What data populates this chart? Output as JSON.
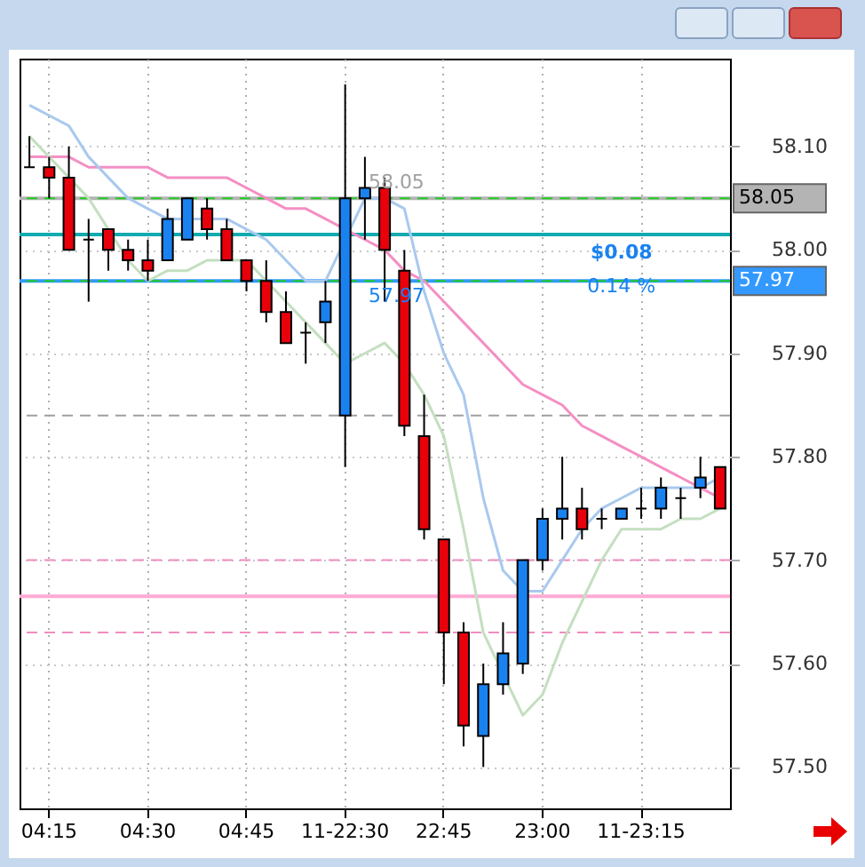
{
  "chart_data": {
    "type": "candlestick",
    "categories": [
      null,
      "04:15",
      null,
      null,
      null,
      null,
      "04:30",
      null,
      null,
      null,
      null,
      "04:45",
      null,
      null,
      null,
      null,
      "11-22:30",
      null,
      null,
      null,
      null,
      "22:45",
      null,
      null,
      null,
      null,
      "23:00",
      null,
      null,
      null,
      null,
      "11-23:15",
      null,
      null,
      null,
      null
    ],
    "ohlc": [
      [
        58.08,
        58.11,
        58.08,
        58.08
      ],
      [
        58.08,
        58.09,
        58.05,
        58.07
      ],
      [
        58.07,
        58.1,
        58.0,
        58.0
      ],
      [
        58.01,
        58.03,
        57.95,
        58.01
      ],
      [
        58.02,
        58.02,
        57.98,
        58.0
      ],
      [
        58.0,
        58.01,
        57.98,
        57.99
      ],
      [
        57.99,
        58.01,
        57.97,
        57.98
      ],
      [
        57.99,
        58.04,
        57.99,
        58.03
      ],
      [
        58.01,
        58.05,
        58.01,
        58.05
      ],
      [
        58.04,
        58.05,
        58.01,
        58.02
      ],
      [
        58.02,
        58.03,
        57.99,
        57.99
      ],
      [
        57.99,
        57.99,
        57.96,
        57.97
      ],
      [
        57.97,
        57.99,
        57.93,
        57.94
      ],
      [
        57.94,
        57.96,
        57.91,
        57.91
      ],
      [
        57.92,
        57.93,
        57.89,
        57.92
      ],
      [
        57.93,
        57.97,
        57.91,
        57.95
      ],
      [
        57.84,
        58.16,
        57.79,
        58.05
      ],
      [
        58.05,
        58.09,
        58.01,
        58.06
      ],
      [
        58.06,
        58.07,
        57.95,
        58.0
      ],
      [
        57.98,
        58.0,
        57.82,
        57.83
      ],
      [
        57.82,
        57.86,
        57.72,
        57.73
      ],
      [
        57.72,
        57.72,
        57.58,
        57.63
      ],
      [
        57.63,
        57.64,
        57.52,
        57.54
      ],
      [
        57.53,
        57.6,
        57.5,
        57.58
      ],
      [
        57.58,
        57.64,
        57.57,
        57.61
      ],
      [
        57.6,
        57.7,
        57.59,
        57.7
      ],
      [
        57.7,
        57.75,
        57.69,
        57.74
      ],
      [
        57.74,
        57.8,
        57.72,
        57.75
      ],
      [
        57.75,
        57.77,
        57.72,
        57.73
      ],
      [
        57.74,
        57.75,
        57.73,
        57.74
      ],
      [
        57.74,
        57.75,
        57.74,
        57.75
      ],
      [
        57.75,
        57.77,
        57.74,
        57.75
      ],
      [
        57.75,
        57.78,
        57.74,
        57.77
      ],
      [
        57.76,
        57.77,
        57.74,
        57.76
      ],
      [
        57.77,
        57.8,
        57.76,
        57.78
      ],
      [
        57.79,
        57.79,
        57.75,
        57.75
      ]
    ],
    "colors": [
      "#000000",
      "#e8000b",
      "#e8000b",
      "#000000",
      "#e8000b",
      "#e8000b",
      "#e8000b",
      "#1a82f0",
      "#1a82f0",
      "#e8000b",
      "#e8000b",
      "#e8000b",
      "#e8000b",
      "#e8000b",
      "#000000",
      "#1a82f0",
      "#1a82f0",
      "#1a82f0",
      "#e8000b",
      "#e8000b",
      "#e8000b",
      "#e8000b",
      "#e8000b",
      "#1a82f0",
      "#1a82f0",
      "#1a82f0",
      "#1a82f0",
      "#1a82f0",
      "#e8000b",
      "#000000",
      "#1a82f0",
      "#000000",
      "#1a82f0",
      "#000000",
      "#1a82f0",
      "#e8000b"
    ],
    "series": [
      {
        "type": "line",
        "color": "#f48fc4",
        "values": [
          58.09,
          58.09,
          58.09,
          58.08,
          58.08,
          58.08,
          58.08,
          58.07,
          58.07,
          58.07,
          58.07,
          58.06,
          58.05,
          58.04,
          58.04,
          58.03,
          58.02,
          58.01,
          58.0,
          57.98,
          57.97,
          57.95,
          57.93,
          57.91,
          57.89,
          57.87,
          57.86,
          57.85,
          57.83,
          57.82,
          57.81,
          57.8,
          57.79,
          57.78,
          57.77,
          57.76
        ]
      },
      {
        "type": "line",
        "color": "#a9c9ee",
        "values": [
          58.14,
          58.13,
          58.12,
          58.09,
          58.07,
          58.05,
          58.04,
          58.03,
          58.03,
          58.03,
          58.03,
          58.02,
          58.01,
          57.99,
          57.97,
          57.97,
          null,
          58.05,
          58.05,
          58.04,
          57.96,
          57.9,
          57.86,
          57.76,
          57.69,
          57.67,
          57.67,
          57.7,
          57.73,
          57.75,
          57.76,
          57.77,
          57.77,
          57.77,
          57.77,
          57.78
        ]
      },
      {
        "type": "line",
        "color": "#c4dfc0",
        "values": [
          58.11,
          58.09,
          58.07,
          58.05,
          58.02,
          57.99,
          57.97,
          57.98,
          57.98,
          57.99,
          57.99,
          57.99,
          57.97,
          57.95,
          57.93,
          57.91,
          57.89,
          57.9,
          57.91,
          57.89,
          57.86,
          57.82,
          57.73,
          57.63,
          null,
          57.55,
          57.57,
          57.62,
          57.66,
          57.7,
          57.73,
          57.73,
          57.73,
          57.74,
          57.74,
          57.75
        ]
      }
    ],
    "ylim": [
      57.46,
      58.185
    ],
    "yticks": [
      {
        "value": 57.5,
        "label": "57.50"
      },
      {
        "value": 57.6,
        "label": "57.60"
      },
      {
        "value": 57.7,
        "label": "57.70"
      },
      {
        "value": 57.8,
        "label": "57.80"
      },
      {
        "value": 57.9,
        "label": "57.90"
      },
      {
        "value": 58.0,
        "label": "58.00"
      },
      {
        "value": 58.1,
        "label": "58.10"
      }
    ],
    "ref_lines": [
      {
        "axis": "y",
        "value": 58.05,
        "label": "58.05",
        "color": "#b4b4b4",
        "line_style": "solid"
      },
      {
        "axis": "y",
        "value": 57.97,
        "label": "57.97",
        "color": "#3399ff",
        "line_style": "solid"
      },
      {
        "axis": "y",
        "value": 58.05,
        "color": "#22cc22",
        "line_style": "dashed"
      },
      {
        "axis": "y",
        "value": 58.015,
        "color": "#12aab0",
        "line_style": "solid"
      },
      {
        "axis": "y",
        "value": 57.97,
        "color": "#22cc22",
        "line_style": "dashed"
      },
      {
        "axis": "y",
        "value": 57.84,
        "color": "#a0a0a0",
        "line_style": "dashed"
      },
      {
        "axis": "y",
        "value": 57.7,
        "color": "#f08cc0",
        "line_style": "dashed"
      },
      {
        "axis": "y",
        "value": 57.665,
        "color": "#ffaad4",
        "line_style": "solid"
      },
      {
        "axis": "y",
        "value": 57.63,
        "color": "#f08cc0",
        "line_style": "dashed"
      }
    ],
    "annotations": [
      {
        "text": "58.05",
        "y": 58.065
      },
      {
        "text": "57.97",
        "y": 57.955
      },
      "$0.08",
      "0.14 %"
    ],
    "grid": true
  }
}
